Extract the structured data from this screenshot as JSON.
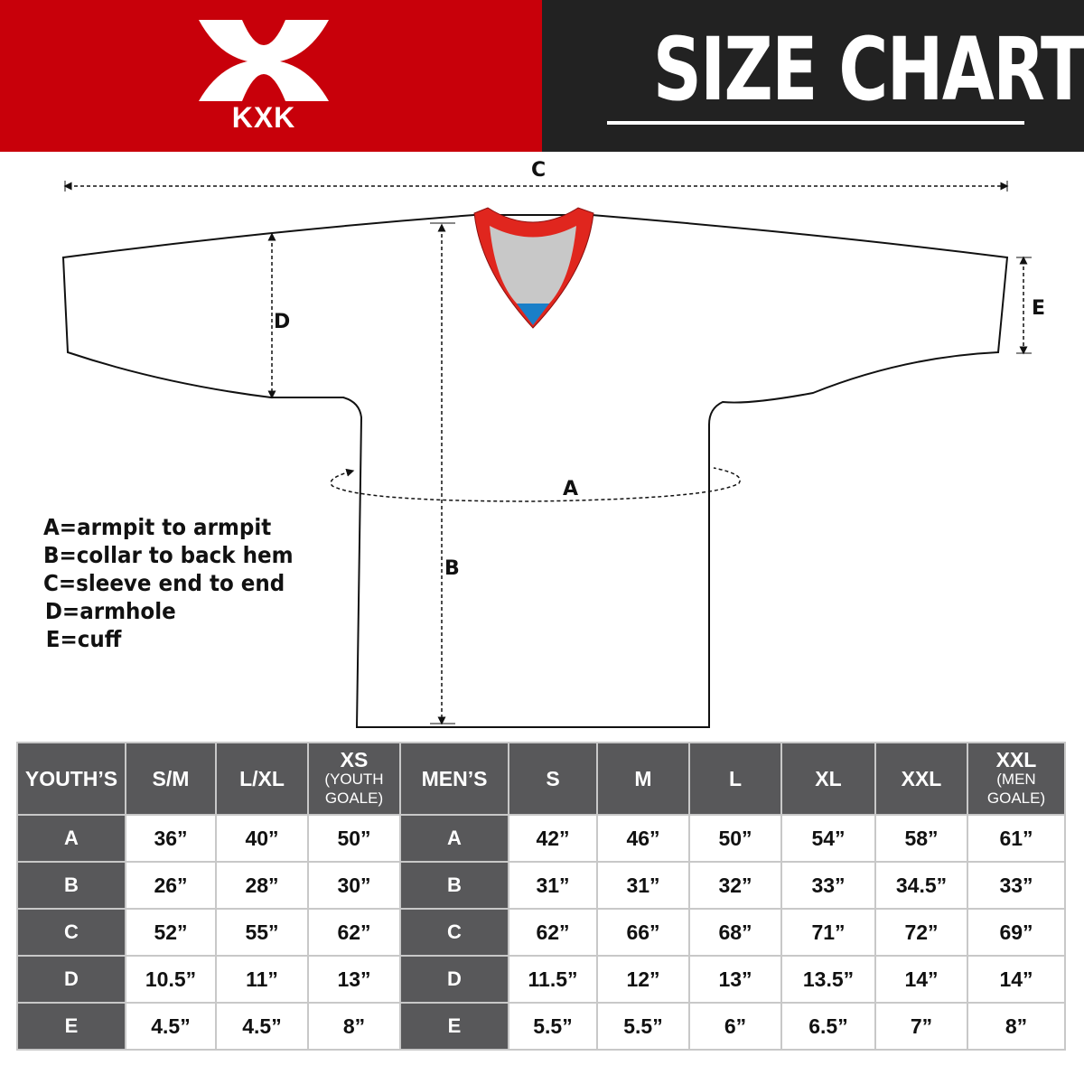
{
  "brand": {
    "logo_text": "KXK",
    "colors": {
      "red": "#c8000a",
      "dark": "#222222",
      "cell_header": "#58585a",
      "collar_red": "#e0261e",
      "collar_grey": "#c8c8c8",
      "collar_blue": "#1a7fc8"
    }
  },
  "header": {
    "title": "SIZE CHART"
  },
  "diagram": {
    "labels": {
      "a": "A",
      "b": "B",
      "c": "C",
      "d": "D",
      "e": "E"
    },
    "legend": [
      "A=armpit to armpit",
      "B=collar to back hem",
      "C=sleeve end to end",
      "D=armhole",
      "E=cuff"
    ]
  },
  "table": {
    "youth": {
      "header": "YOUTH’S",
      "sizes": [
        {
          "main": "S/M",
          "sub": ""
        },
        {
          "main": "L/XL",
          "sub": ""
        },
        {
          "main": "XS",
          "sub": "(YOUTH GOALE)"
        }
      ],
      "rows": [
        {
          "label": "A",
          "values": [
            "36”",
            "40”",
            "50”"
          ]
        },
        {
          "label": "B",
          "values": [
            "26”",
            "28”",
            "30”"
          ]
        },
        {
          "label": "C",
          "values": [
            "52”",
            "55”",
            "62”"
          ]
        },
        {
          "label": "D",
          "values": [
            "10.5”",
            "11”",
            "13”"
          ]
        },
        {
          "label": "E",
          "values": [
            "4.5”",
            "4.5”",
            "8”"
          ]
        }
      ]
    },
    "men": {
      "header": "MEN’S",
      "sizes": [
        {
          "main": "S",
          "sub": ""
        },
        {
          "main": "M",
          "sub": ""
        },
        {
          "main": "L",
          "sub": ""
        },
        {
          "main": "XL",
          "sub": ""
        },
        {
          "main": "XXL",
          "sub": ""
        },
        {
          "main": "XXL",
          "sub": "(MEN GOALE)"
        }
      ],
      "rows": [
        {
          "label": "A",
          "values": [
            "42”",
            "46”",
            "50”",
            "54”",
            "58”",
            "61”"
          ]
        },
        {
          "label": "B",
          "values": [
            "31”",
            "31”",
            "32”",
            "33”",
            "34.5”",
            "33”"
          ]
        },
        {
          "label": "C",
          "values": [
            "62”",
            "66”",
            "68”",
            "71”",
            "72”",
            "69”"
          ]
        },
        {
          "label": "D",
          "values": [
            "11.5”",
            "12”",
            "13”",
            "13.5”",
            "14”",
            "14”"
          ]
        },
        {
          "label": "E",
          "values": [
            "5.5”",
            "5.5”",
            "6”",
            "6.5”",
            "7”",
            "8”"
          ]
        }
      ]
    }
  }
}
